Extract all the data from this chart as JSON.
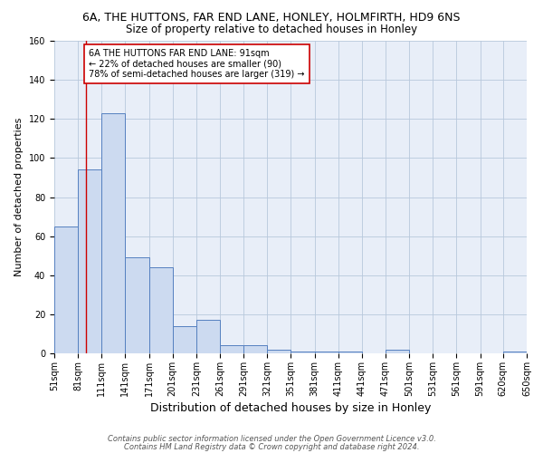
{
  "title": "6A, THE HUTTONS, FAR END LANE, HONLEY, HOLMFIRTH, HD9 6NS",
  "subtitle": "Size of property relative to detached houses in Honley",
  "xlabel": "Distribution of detached houses by size in Honley",
  "ylabel": "Number of detached properties",
  "bar_edges": [
    51,
    81,
    111,
    141,
    171,
    201,
    231,
    261,
    291,
    321,
    351,
    381,
    411,
    441,
    471,
    501,
    531,
    561,
    591,
    620,
    650
  ],
  "bar_heights": [
    65,
    94,
    123,
    49,
    44,
    14,
    17,
    4,
    4,
    2,
    1,
    1,
    1,
    0,
    2,
    0,
    0,
    0,
    0,
    1,
    0
  ],
  "bar_color": "#ccdaf0",
  "bar_edge_color": "#5580c0",
  "bar_linewidth": 0.7,
  "grid_color": "#b8c8dc",
  "bg_color": "#e8eef8",
  "red_line_x": 91,
  "ylim": [
    0,
    160
  ],
  "yticks": [
    0,
    20,
    40,
    60,
    80,
    100,
    120,
    140,
    160
  ],
  "annotation_line1": "6A THE HUTTONS FAR END LANE: 91sqm",
  "annotation_line2": "← 22% of detached houses are smaller (90)",
  "annotation_line3": "78% of semi-detached houses are larger (319) →",
  "annotation_box_color": "#ffffff",
  "annotation_box_edge_color": "#cc0000",
  "footnote_line1": "Contains HM Land Registry data © Crown copyright and database right 2024.",
  "footnote_line2": "Contains public sector information licensed under the Open Government Licence v3.0.",
  "title_fontsize": 9,
  "subtitle_fontsize": 8.5,
  "xlabel_fontsize": 9,
  "ylabel_fontsize": 8,
  "tick_fontsize": 7,
  "annotation_fontsize": 7,
  "footnote_fontsize": 6
}
